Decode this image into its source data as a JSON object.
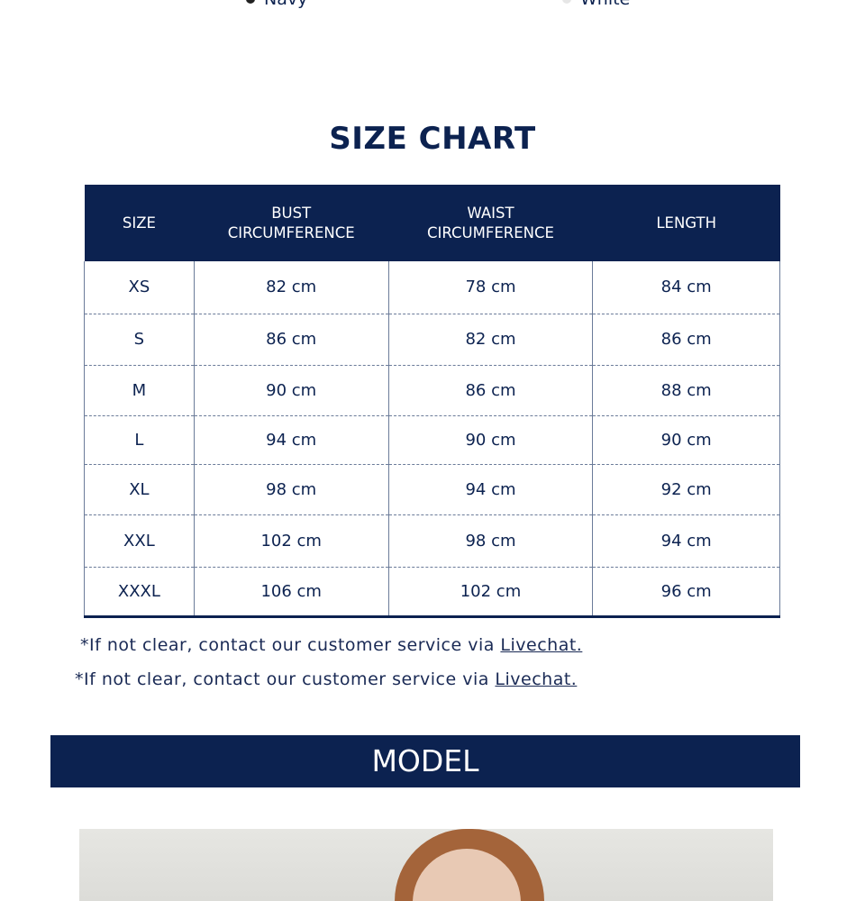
{
  "colors": {
    "brand": "#0c2250",
    "navy_swatch": "#222222",
    "white_swatch": "#e6e6e6"
  },
  "swatches": [
    {
      "label": "Navy"
    },
    {
      "label": "White"
    }
  ],
  "title": "SIZE CHART",
  "table": {
    "headers": [
      [
        "SIZE"
      ],
      [
        "BUST",
        "CIRCUMFERENCE"
      ],
      [
        "WAIST",
        "CIRCUMFERENCE"
      ],
      [
        "LENGTH"
      ]
    ],
    "rows": [
      [
        "XS",
        "82 cm",
        "78 cm",
        "84 cm"
      ],
      [
        "S",
        "86 cm",
        "82 cm",
        "86 cm"
      ],
      [
        "M",
        "90 cm",
        "86 cm",
        "88 cm"
      ],
      [
        "L",
        "94 cm",
        "90 cm",
        "90 cm"
      ],
      [
        "XL",
        "98 cm",
        "94 cm",
        "92 cm"
      ],
      [
        "XXL",
        "102 cm",
        "98 cm",
        "94 cm"
      ],
      [
        "XXXL",
        "106 cm",
        "102 cm",
        "96 cm"
      ]
    ]
  },
  "notes": [
    {
      "text": "*If not clear, contact our customer service via ",
      "link": "Livechat."
    },
    {
      "text": "*If not clear, contact our customer service via ",
      "link": "Livechat."
    }
  ],
  "model": {
    "heading": "MODEL"
  }
}
